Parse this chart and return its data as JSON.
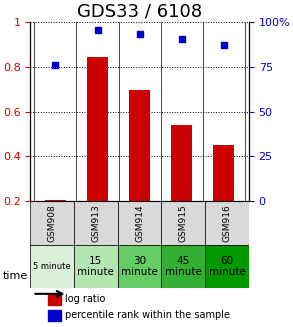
{
  "title": "GDS33 / 6108",
  "samples": [
    "GSM908",
    "GSM913",
    "GSM914",
    "GSM915",
    "GSM916"
  ],
  "log_ratio": [
    0.205,
    0.845,
    0.695,
    0.54,
    0.45
  ],
  "percentile_rank": [
    0.76,
    0.955,
    0.935,
    0.905,
    0.875
  ],
  "bar_color": "#cc0000",
  "point_color": "#0000cc",
  "ylim_left": [
    0.2,
    1.0
  ],
  "ylim_right": [
    0,
    100
  ],
  "yticks_left": [
    0.2,
    0.4,
    0.6,
    0.8,
    1.0
  ],
  "yticks_right": [
    0,
    25,
    50,
    75,
    100
  ],
  "ytick_labels_left": [
    "0.2",
    "0.4",
    "0.6",
    "0.8",
    "1"
  ],
  "ytick_labels_right": [
    "0",
    "25",
    "50",
    "75",
    "100%"
  ],
  "time_labels": [
    "5 minute",
    "15\nminute",
    "30\nminute",
    "45\nminute",
    "60\nminute"
  ],
  "time_colors": [
    "#d9f0d9",
    "#b3e6b3",
    "#66cc66",
    "#33b033",
    "#009900"
  ],
  "gsm_bg_color": "#d9d9d9",
  "legend_log_ratio": "log ratio",
  "legend_percentile": "percentile rank within the sample",
  "background_color": "#ffffff",
  "grid_color": "#000000",
  "title_fontsize": 13,
  "tick_fontsize": 8,
  "bar_width": 0.5
}
